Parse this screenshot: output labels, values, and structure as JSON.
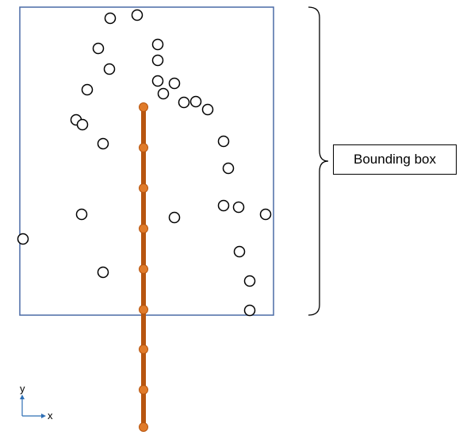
{
  "labels": {
    "bounding_box": "Bounding box",
    "axis_y": "y",
    "axis_x": "x"
  },
  "colors": {
    "box_stroke": "#4a6aa5",
    "line": "#b7550f",
    "node": "#e07b2a",
    "circle_stroke": "#000000"
  }
}
